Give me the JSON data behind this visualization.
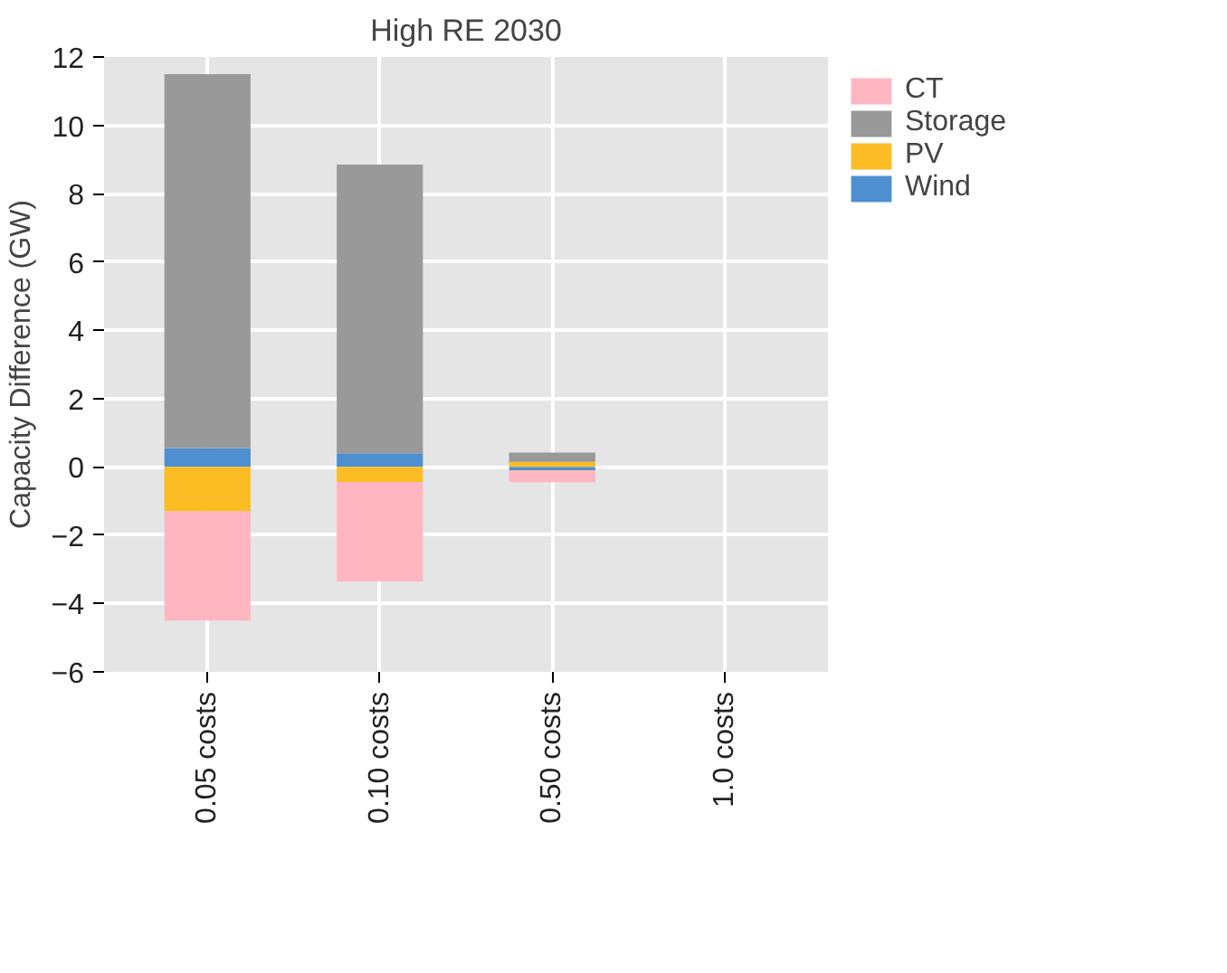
{
  "chart_data": {
    "type": "bar",
    "title": "High RE 2030",
    "ylabel": "Capacity Difference (GW)",
    "categories": [
      "0.05 costs",
      "0.10 costs",
      "0.50 costs",
      "1.0 costs"
    ],
    "stacked": true,
    "series": [
      {
        "name": "Wind",
        "color": "#4e8fd0",
        "values": [
          0.55,
          0.4,
          -0.1,
          0
        ]
      },
      {
        "name": "PV",
        "color": "#fbbc24",
        "values": [
          -1.3,
          -0.45,
          0.15,
          0
        ]
      },
      {
        "name": "Storage",
        "color": "#999999",
        "values": [
          10.95,
          8.45,
          0.27,
          0
        ]
      },
      {
        "name": "CT",
        "color": "#ffb6c1",
        "values": [
          -3.2,
          -2.9,
          -0.35,
          0
        ]
      }
    ],
    "ylim": [
      -6,
      12
    ],
    "yticks": [
      -6,
      -4,
      -2,
      0,
      2,
      4,
      6,
      8,
      10,
      12
    ],
    "grid": true,
    "legend": "right"
  }
}
